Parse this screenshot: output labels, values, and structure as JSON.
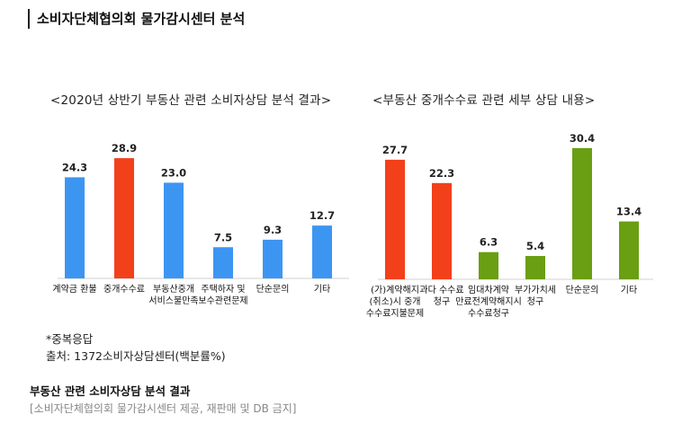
{
  "header": {
    "title": "소비자단체협의회 물가감시센터 분석"
  },
  "chart_data": [
    {
      "type": "bar",
      "title": "<2020년 상반기 부동산 관련 소비자상담 분석 결과>",
      "categories": [
        [
          "계약금 환불"
        ],
        [
          "중개수수료"
        ],
        [
          "부동산중개",
          "서비스불만족"
        ],
        [
          "주택하자 및",
          "보수관련문제"
        ],
        [
          "단순문의"
        ],
        [
          "기타"
        ]
      ],
      "values": [
        24.3,
        28.9,
        23.0,
        7.5,
        9.3,
        12.7
      ],
      "value_labels": [
        "24.3",
        "28.9",
        "23.0",
        "7.5",
        "9.3",
        "12.7"
      ],
      "colors": [
        "#3d95f2",
        "#f2401a",
        "#3d95f2",
        "#3d95f2",
        "#3d95f2",
        "#3d95f2"
      ],
      "ylim": [
        0,
        30
      ]
    },
    {
      "type": "bar",
      "title": "<부동산 중개수수료 관련 세부 상담 내용>",
      "categories": [
        [
          "(가)계약해지",
          "(취소)시 중개",
          "수수료지불문제"
        ],
        [
          "과다 수수료",
          "청구"
        ],
        [
          "임대차계약",
          "만료전계약해지시",
          "수수료청구"
        ],
        [
          "부가가치세",
          "청구"
        ],
        [
          "단순문의"
        ],
        [
          "기타"
        ]
      ],
      "values": [
        27.7,
        22.3,
        6.3,
        5.4,
        30.4,
        13.4
      ],
      "value_labels": [
        "27.7",
        "22.3",
        "6.3",
        "5.4",
        "30.4",
        "13.4"
      ],
      "colors": [
        "#f2401a",
        "#f2401a",
        "#6a9e13",
        "#6a9e13",
        "#6a9e13",
        "#6a9e13"
      ],
      "ylim": [
        0,
        31
      ]
    }
  ],
  "notes": {
    "multiple": "*중복응답",
    "source": "출처: 1372소비자상담센터(백분률%)"
  },
  "caption": "부동산 관련 소비자상담 분석 결과",
  "credit": "[소비자단체협의회 물가감시센터 제공, 재판매 및 DB 금지]"
}
